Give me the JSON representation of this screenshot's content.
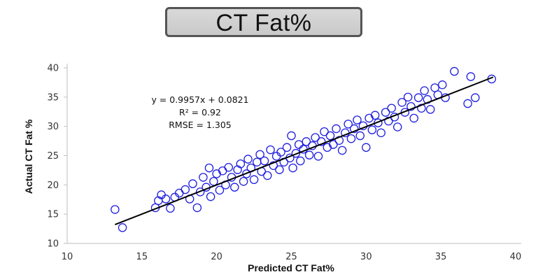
{
  "header": {
    "title": "CT Fat%"
  },
  "chart_data": {
    "type": "scatter",
    "title": "CT Fat%",
    "xlabel": "Predicted CT Fat%",
    "ylabel": "Actual CT Fat %",
    "xlim": [
      10,
      40
    ],
    "ylim": [
      10,
      40
    ],
    "xticks": [
      10,
      15,
      20,
      25,
      30,
      35,
      40
    ],
    "yticks": [
      10,
      15,
      20,
      25,
      30,
      35,
      40
    ],
    "grid": false,
    "legend": "none",
    "marker": "open-circle",
    "marker_color": "#1f1fe0",
    "trendline": {
      "slope": 0.9957,
      "intercept": 0.0821,
      "x_range": [
        13.2,
        38.5
      ],
      "color": "#000000"
    },
    "annotations": [
      "y = 0.9957x + 0.0821",
      "R² = 0.92",
      "RMSE = 1.305"
    ],
    "points": [
      [
        13.2,
        15.8
      ],
      [
        13.7,
        12.7
      ],
      [
        15.9,
        16.1
      ],
      [
        16.1,
        17.3
      ],
      [
        16.3,
        18.3
      ],
      [
        16.6,
        17.6
      ],
      [
        16.9,
        16.0
      ],
      [
        17.2,
        17.9
      ],
      [
        17.5,
        18.6
      ],
      [
        17.9,
        19.2
      ],
      [
        18.2,
        17.6
      ],
      [
        18.4,
        20.2
      ],
      [
        18.7,
        16.1
      ],
      [
        18.9,
        18.8
      ],
      [
        19.1,
        21.3
      ],
      [
        19.3,
        19.6
      ],
      [
        19.5,
        22.9
      ],
      [
        19.6,
        18.0
      ],
      [
        19.8,
        20.6
      ],
      [
        20.0,
        21.9
      ],
      [
        20.2,
        19.1
      ],
      [
        20.4,
        22.4
      ],
      [
        20.6,
        20.0
      ],
      [
        20.8,
        23.0
      ],
      [
        21.0,
        21.3
      ],
      [
        21.2,
        19.6
      ],
      [
        21.4,
        22.6
      ],
      [
        21.6,
        23.6
      ],
      [
        21.8,
        20.6
      ],
      [
        22.0,
        21.9
      ],
      [
        22.1,
        24.4
      ],
      [
        22.3,
        22.9
      ],
      [
        22.5,
        20.9
      ],
      [
        22.7,
        23.9
      ],
      [
        22.9,
        25.2
      ],
      [
        23.0,
        22.3
      ],
      [
        23.2,
        24.1
      ],
      [
        23.4,
        21.6
      ],
      [
        23.6,
        26.0
      ],
      [
        23.8,
        23.3
      ],
      [
        24.0,
        24.9
      ],
      [
        24.2,
        22.6
      ],
      [
        24.3,
        25.6
      ],
      [
        24.5,
        23.9
      ],
      [
        24.7,
        26.4
      ],
      [
        24.9,
        24.6
      ],
      [
        25.0,
        28.4
      ],
      [
        25.1,
        22.9
      ],
      [
        25.3,
        25.4
      ],
      [
        25.5,
        26.9
      ],
      [
        25.6,
        24.1
      ],
      [
        25.8,
        26.1
      ],
      [
        26.0,
        27.4
      ],
      [
        26.2,
        25.1
      ],
      [
        26.4,
        26.7
      ],
      [
        26.6,
        28.1
      ],
      [
        26.8,
        24.9
      ],
      [
        27.0,
        27.4
      ],
      [
        27.2,
        29.1
      ],
      [
        27.4,
        26.4
      ],
      [
        27.6,
        28.4
      ],
      [
        27.8,
        26.9
      ],
      [
        28.0,
        29.6
      ],
      [
        28.2,
        27.6
      ],
      [
        28.4,
        25.9
      ],
      [
        28.6,
        28.9
      ],
      [
        28.8,
        30.4
      ],
      [
        29.0,
        27.9
      ],
      [
        29.2,
        29.6
      ],
      [
        29.4,
        31.1
      ],
      [
        29.6,
        28.4
      ],
      [
        29.8,
        30.1
      ],
      [
        30.0,
        26.4
      ],
      [
        30.2,
        31.4
      ],
      [
        30.4,
        29.4
      ],
      [
        30.6,
        31.9
      ],
      [
        30.8,
        30.6
      ],
      [
        31.0,
        28.9
      ],
      [
        31.3,
        32.4
      ],
      [
        31.5,
        30.9
      ],
      [
        31.7,
        33.1
      ],
      [
        31.9,
        31.6
      ],
      [
        32.1,
        29.9
      ],
      [
        32.4,
        34.1
      ],
      [
        32.6,
        32.4
      ],
      [
        32.8,
        35.0
      ],
      [
        33.0,
        33.4
      ],
      [
        33.2,
        31.4
      ],
      [
        33.5,
        34.9
      ],
      [
        33.7,
        33.1
      ],
      [
        33.9,
        36.1
      ],
      [
        34.1,
        34.6
      ],
      [
        34.3,
        32.9
      ],
      [
        34.6,
        36.6
      ],
      [
        34.8,
        35.4
      ],
      [
        35.1,
        37.1
      ],
      [
        35.3,
        34.9
      ],
      [
        35.9,
        39.4
      ],
      [
        36.8,
        33.9
      ],
      [
        37.0,
        38.5
      ],
      [
        37.3,
        34.9
      ],
      [
        38.4,
        38.1
      ]
    ]
  }
}
